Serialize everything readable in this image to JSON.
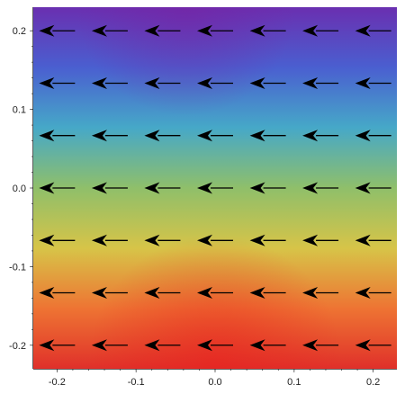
{
  "chart_data": {
    "type": "vector_field",
    "title": "",
    "xlabel": "",
    "ylabel": "",
    "xlim": [
      -0.23,
      0.23
    ],
    "ylim": [
      -0.23,
      0.23
    ],
    "x_ticks": [
      -0.2,
      -0.1,
      0.0,
      0.1,
      0.2
    ],
    "x_tick_labels": [
      "-0.2",
      "-0.1",
      "0.0",
      "0.1",
      "0.2"
    ],
    "y_ticks": [
      -0.2,
      -0.1,
      0.0,
      0.1,
      0.2
    ],
    "y_tick_labels": [
      "-0.2",
      "-0.1",
      "0.0",
      "0.1",
      "0.2"
    ],
    "arrow_x": [
      -0.2,
      -0.1333,
      -0.0667,
      0.0,
      0.0667,
      0.1333,
      0.2
    ],
    "arrow_y": [
      -0.2,
      -0.1333,
      -0.0667,
      0.0,
      0.0667,
      0.1333,
      0.2
    ],
    "vector": {
      "u": -1,
      "v": 0
    },
    "background": {
      "description": "color gradient varying with y",
      "colors_bottom_to_top": [
        "#e0302a",
        "#ee7433",
        "#d7c448",
        "#8fbf6a",
        "#46a8c8",
        "#4a5fd0",
        "#6a2fb0"
      ]
    },
    "grid": false,
    "legend": "none"
  }
}
